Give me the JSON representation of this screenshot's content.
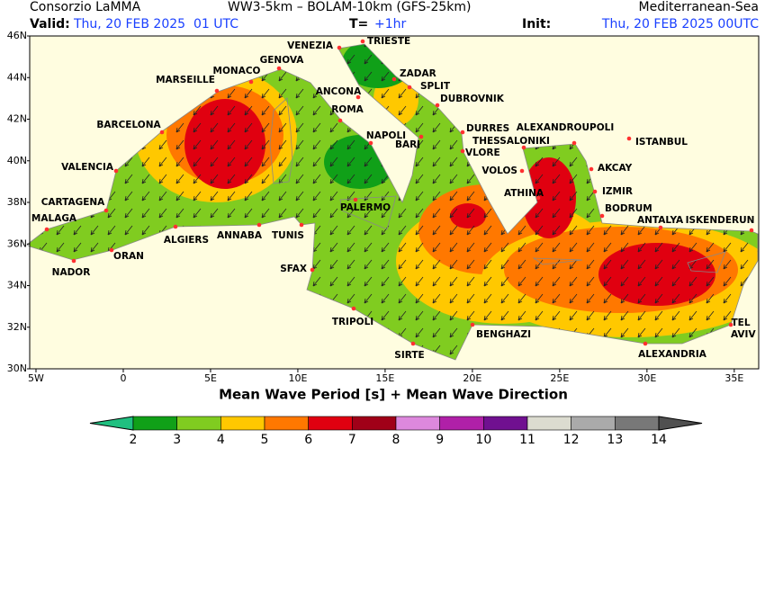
{
  "header": {
    "source": "Consorzio LaMMA",
    "models": "WW3-5km – BOLAM-10km (GFS-25km)",
    "domain": "Mediterranean-Sea",
    "valid_label": "Valid:",
    "valid": "Thu, 20 FEB 2025  01 UTC",
    "step_label": "T=",
    "step": "+1hr",
    "init_label": "Init:",
    "init": "Thu, 20 FEB 2025 00UTC"
  },
  "map": {
    "title": "Mean Wave Period [s] + Mean Wave Direction",
    "xlim": [
      -5.36,
      36.4
    ],
    "ylim": [
      30,
      46
    ],
    "xticks": [
      {
        "value": -5,
        "label": "5W"
      },
      0,
      {
        "value": 5,
        "label": "5E"
      },
      {
        "value": 10,
        "label": "10E"
      },
      {
        "value": 15,
        "label": "15E"
      },
      {
        "value": 20,
        "label": "20E"
      },
      {
        "value": 25,
        "label": "25E"
      },
      {
        "value": 30,
        "label": "30E"
      },
      {
        "value": 35,
        "label": "35E"
      }
    ],
    "yticks": [
      {
        "value": 30,
        "label": "30N"
      },
      {
        "value": 32,
        "label": "32N"
      },
      {
        "value": 34,
        "label": "34N"
      },
      {
        "value": 36,
        "label": "36N"
      },
      {
        "value": 38,
        "label": "38N"
      },
      {
        "value": 40,
        "label": "40N"
      },
      {
        "value": 42,
        "label": "42N"
      },
      {
        "value": 44,
        "label": "44N"
      },
      {
        "value": 46,
        "label": "46N"
      }
    ],
    "cities": [
      "VENEZIA",
      "TRIESTE",
      "MONACO",
      "GENOVA",
      "MARSEILLE",
      "ZADAR",
      "SPLIT",
      "ANCONA",
      "DUBROVNIK",
      "ROMA",
      "BARCELONA",
      "NAPOLI",
      "BARI",
      "DURRES",
      "ALEXANDROUPOLI",
      "THESSALONIKI",
      "ISTANBUL",
      "VLORE",
      "VALENCIA",
      "VOLOS",
      "AKCAY",
      "IZMIR",
      "ATHINA",
      "CARTAGENA",
      "PALERMO",
      "BODRUM",
      "MALAGA",
      "ANTALYA",
      "ISKENDERUN",
      "ANNABA",
      "TUNIS",
      "ALGIERS",
      "ORAN",
      "NADOR",
      "SFAX",
      "TRIPOLI",
      "TEL AVIV",
      "BENGHAZI",
      "SIRTE",
      "ALEXANDRIA"
    ]
  },
  "colorbar": {
    "ticks": [
      2,
      3,
      4,
      5,
      6,
      7,
      8,
      9,
      10,
      11,
      12,
      13,
      14
    ],
    "colors": [
      "#20c080",
      "#10a018",
      "#80cc20",
      "#ffc800",
      "#ff7800",
      "#e00010",
      "#a00018",
      "#dd88dd",
      "#b020a8",
      "#701090",
      "#dcdcd0",
      "#aaaaaa",
      "#787878",
      "#505050"
    ]
  }
}
